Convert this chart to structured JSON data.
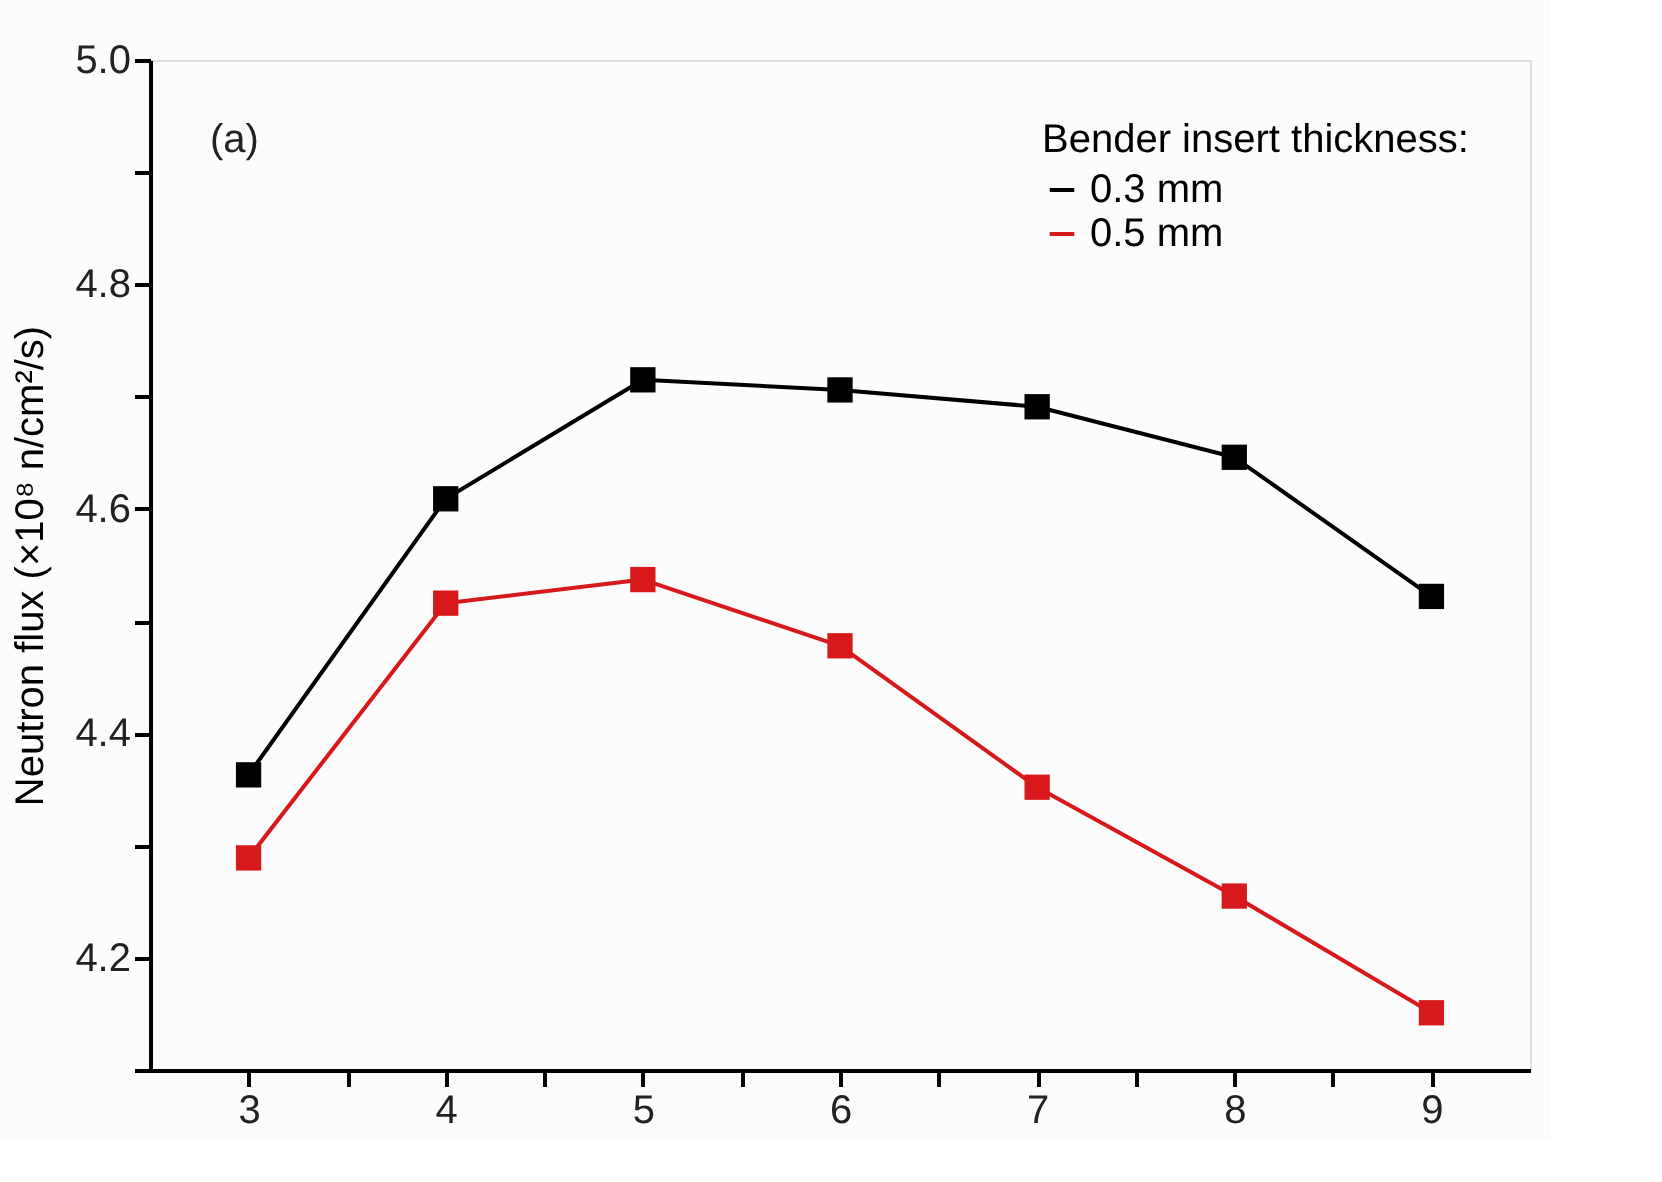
{
  "chart_data": {
    "type": "line",
    "ylabel": "Neutron flux (×10⁸ n/cm²/s)",
    "legend_title": "Bender insert thickness:",
    "annotations": [
      "(a)"
    ],
    "x": [
      3,
      4,
      5,
      6,
      7,
      8,
      9
    ],
    "series": [
      {
        "name": "0.3 mm",
        "color": "#000000",
        "values": [
          4.363,
          4.609,
          4.715,
          4.706,
          4.691,
          4.646,
          4.522
        ]
      },
      {
        "name": "0.5 mm",
        "color": "#d7191c",
        "values": [
          4.289,
          4.516,
          4.537,
          4.478,
          4.352,
          4.255,
          4.151
        ]
      }
    ],
    "xlim": [
      2.5,
      9.5
    ],
    "xticks": [
      3,
      {
        "value": 3.5,
        "label": null
      },
      4,
      {
        "value": 4.5,
        "label": null
      },
      5,
      {
        "value": 5.5,
        "label": null
      },
      6,
      {
        "value": 6.5,
        "label": null
      },
      7,
      {
        "value": 7.5,
        "label": null
      },
      8,
      {
        "value": 8.5,
        "label": null
      },
      9
    ],
    "ylim": [
      4.1,
      5.0
    ],
    "yticks": [
      {
        "value": 4.1,
        "label": null
      },
      4.2,
      {
        "value": 4.3,
        "label": null
      },
      4.4,
      {
        "value": 4.5,
        "label": null
      },
      4.6,
      {
        "value": 4.7,
        "label": null
      },
      4.8,
      {
        "value": 4.9,
        "label": null
      },
      {
        "value": 5,
        "label": "5.0"
      }
    ],
    "marker": "square",
    "line_style": "solid",
    "grid": false,
    "legend": "top right"
  }
}
